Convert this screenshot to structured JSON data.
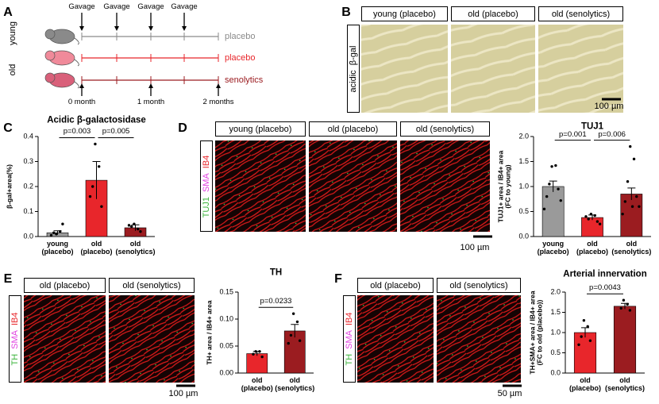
{
  "panel_a": {
    "label": "A",
    "groups": [
      "young",
      "old"
    ],
    "gavage": [
      "Gavage",
      "Gavage",
      "Gavage",
      "Gavage"
    ],
    "arms": [
      "placebo",
      "placebo",
      "senolytics"
    ],
    "timepoints": [
      "0 month",
      "1 month",
      "2 months"
    ]
  },
  "panel_b": {
    "label": "B",
    "headers": [
      "young (placebo)",
      "old (placebo)",
      "old (senolytics)"
    ],
    "stain": "acidic  β-gal",
    "scale_bar": "100 µm"
  },
  "panel_c": {
    "label": "C"
  },
  "panel_d": {
    "label": "D",
    "headers": [
      "young (placebo)",
      "old (placebo)",
      "old (senolytics)"
    ],
    "stain": [
      "TUJ1",
      "SMA",
      "IB4"
    ],
    "scale_bar": "100 µm"
  },
  "panel_e": {
    "label": "E",
    "headers": [
      "old (placebo)",
      "old (senolytics)"
    ],
    "stain": [
      "TH",
      "SMA",
      "IB4"
    ],
    "scale_bar": "100 µm"
  },
  "panel_f": {
    "label": "F",
    "headers": [
      "old (placebo)",
      "old (senolytics)"
    ],
    "stain": [
      "TH",
      "SMA",
      "IB4"
    ],
    "scale_bar": "50 µm"
  },
  "chart_data": [
    {
      "type": "bar",
      "title": "Acidic β-galactosidase",
      "ylabel": "β-gal+area(%)",
      "categories": [
        "young\n(placebo)",
        "old\n(placebo)",
        "old\n(senolytics)"
      ],
      "values": [
        0.015,
        0.225,
        0.035
      ],
      "errors": [
        0.008,
        0.075,
        0.012
      ],
      "colors": [
        "#9a9a9a",
        "#e8262b",
        "#9b1c20"
      ],
      "points": [
        [
          0.01,
          0.02,
          0.015,
          0.05,
          0.005
        ],
        [
          0.37,
          0.28,
          0.2,
          0.12,
          0.16
        ],
        [
          0.05,
          0.03,
          0.04,
          0.02,
          0.045
        ]
      ],
      "significance": [
        "p=0.003",
        "p=0.005"
      ],
      "ylim": [
        0,
        0.4
      ],
      "yticks": [
        {
          "value": 0,
          "label": "0.0"
        },
        0.1,
        0.2,
        0.3,
        0.4
      ]
    },
    {
      "type": "bar",
      "title": "TUJ1",
      "ylabel": "TUJ1+ area / IB4+ area\n(FC to young)",
      "categories": [
        "young\n(placebo)",
        "old\n(placebo)",
        "old\n(senolytics)"
      ],
      "values": [
        1.0,
        0.38,
        0.85
      ],
      "errors": [
        0.11,
        0.05,
        0.12
      ],
      "colors": [
        "#9a9a9a",
        "#e8262b",
        "#9b1c20"
      ],
      "points": [
        [
          1.4,
          1.42,
          1.05,
          0.95,
          0.8,
          0.72,
          0.55
        ],
        [
          0.45,
          0.42,
          0.35,
          0.3,
          0.4,
          0.25
        ],
        [
          1.8,
          1.55,
          1.1,
          0.8,
          0.7,
          0.6,
          0.45,
          0.6
        ]
      ],
      "significance": [
        "p=0.001",
        "p=0.006"
      ],
      "ylim": [
        0,
        2.0
      ],
      "yticks": [
        {
          "value": 0,
          "label": "0.0"
        },
        0.5,
        {
          "value": 1,
          "label": "1.0"
        },
        1.5,
        {
          "value": 2,
          "label": "2.0"
        }
      ]
    },
    {
      "type": "bar",
      "title": "TH",
      "ylabel": "TH+ area / IB4+ area",
      "categories": [
        "old\n(placebo)",
        "old\n(senolytics)"
      ],
      "values": [
        0.036,
        0.078
      ],
      "errors": [
        0.004,
        0.012
      ],
      "colors": [
        "#e8262b",
        "#9b1c20"
      ],
      "points": [
        [
          0.04,
          0.04,
          0.035,
          0.03
        ],
        [
          0.11,
          0.095,
          0.07,
          0.06,
          0.055
        ]
      ],
      "significance": [
        "p=0.0233"
      ],
      "ylim": [
        0,
        0.15
      ],
      "yticks": [
        {
          "value": 0,
          "label": "0.00"
        },
        0.05,
        {
          "value": 0.1,
          "label": "0.10"
        },
        0.15
      ]
    },
    {
      "type": "bar",
      "title": "Arterial innervation",
      "ylabel": "TH+SMA+ area / IB4+ area\n(FC to old (placebo))",
      "categories": [
        "old\n(placebo)",
        "old\n(senolytics)"
      ],
      "values": [
        1.0,
        1.65
      ],
      "errors": [
        0.12,
        0.07
      ],
      "colors": [
        "#e8262b",
        "#9b1c20"
      ],
      "points": [
        [
          1.3,
          1.15,
          0.9,
          0.8,
          0.7
        ],
        [
          1.8,
          1.7,
          1.6,
          1.55
        ]
      ],
      "significance": [
        "p=0.0043"
      ],
      "ylim": [
        0,
        2.0
      ],
      "yticks": [
        {
          "value": 0,
          "label": "0.0"
        },
        0.5,
        {
          "value": 1,
          "label": "1.0"
        },
        1.5,
        {
          "value": 2,
          "label": "2.0"
        }
      ]
    }
  ]
}
